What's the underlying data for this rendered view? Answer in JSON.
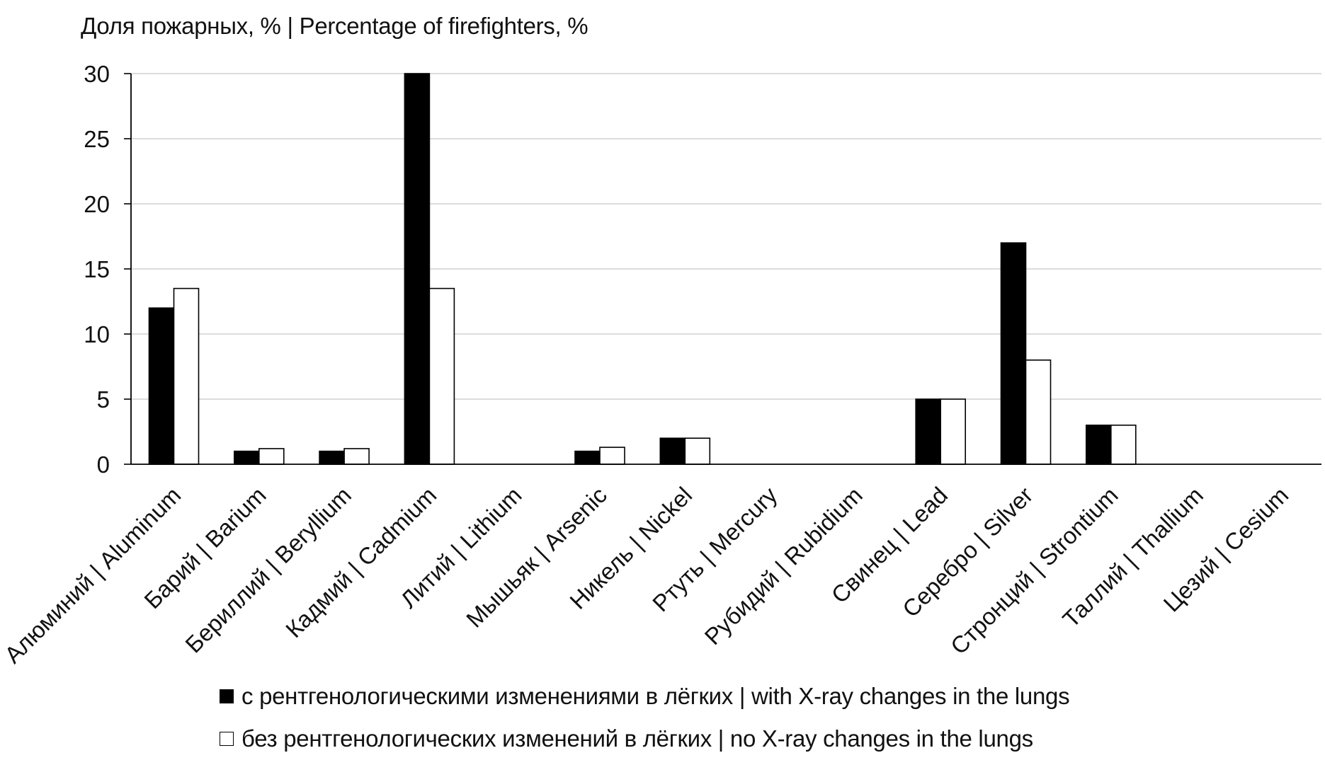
{
  "chart_data": {
    "type": "bar",
    "ylabel": "Доля пожарных, % | Percentage of firefighters, %",
    "ylim": [
      0,
      30
    ],
    "yticks": [
      0,
      5,
      10,
      15,
      20,
      25,
      30
    ],
    "grid": true,
    "legend_position": "bottom-center",
    "categories": [
      "Алюминий | Aluminum",
      "Барий | Barium",
      "Бериллий | Beryllium",
      "Кадмий | Cadmium",
      "Литий | Lithium",
      "Мышьяк | Arsenic",
      "Никель | Nickel",
      "Ртуть | Mercury",
      "Рубидий | Rubidium",
      "Свинец | Lead",
      "Серебро | Silver",
      "Стронций | Strontium",
      "Таллий | Thallium",
      "Цезий | Cesium"
    ],
    "series": [
      {
        "name": "с рентгенологическими изменениями в лёгких | with X-ray changes in the lungs",
        "color": "#000000",
        "values": [
          12,
          1,
          1,
          30,
          0,
          1,
          2,
          0,
          0,
          5,
          17,
          3,
          0,
          0
        ]
      },
      {
        "name": "без рентгенологических изменений в лёгких | no X-ray changes in the lungs",
        "color": "#ffffff",
        "values": [
          13.5,
          1.2,
          1.2,
          13.5,
          0,
          1.3,
          2,
          0,
          0,
          5,
          8,
          3,
          0,
          0
        ]
      }
    ]
  }
}
